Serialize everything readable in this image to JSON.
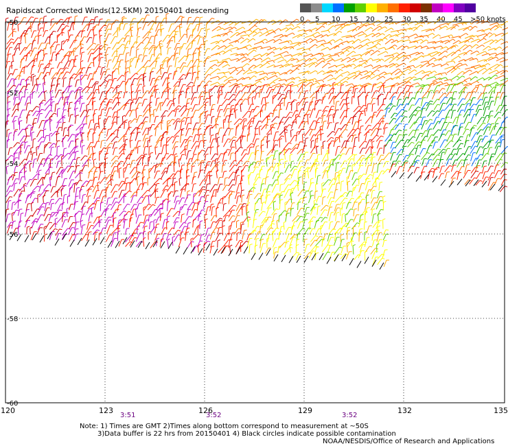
{
  "header": {
    "title": "Rapidscat Corrected Winds(12.5KM) 20150401 descending"
  },
  "legend": {
    "labels": [
      "0",
      "5",
      "10",
      "15",
      "20",
      "25",
      "30",
      "35",
      "40",
      "45",
      ">50 knots"
    ],
    "colors": [
      "#555555",
      "#8c8c8c",
      "#00d8ff",
      "#0070ff",
      "#00a000",
      "#60d000",
      "#ffff00",
      "#ffb000",
      "#ff7000",
      "#ff2000",
      "#d00000",
      "#7a3000",
      "#c000c0",
      "#ff00ff",
      "#8000c0",
      "#5000a0"
    ]
  },
  "axes": {
    "lat_labels": [
      "-50",
      "-52",
      "-54",
      "-56",
      "-58",
      "-60"
    ],
    "lon_labels": [
      "120",
      "123",
      "126",
      "129",
      "132",
      "135"
    ]
  },
  "times": [
    "3:51",
    "3:52",
    "3:52"
  ],
  "notes": {
    "line1": "Note: 1) Times are GMT 2)Times along bottom correspond to measurement at ~50S",
    "line2": "3)Data buffer is 22 hrs from 20150401 4) Black circles indicate possible contamination",
    "line3": "NOAA/NESDIS/Office of Research and Applications"
  },
  "map_layers": [
    "wind-barbs-swath",
    "lat-lon-grid",
    "map-frame"
  ]
}
